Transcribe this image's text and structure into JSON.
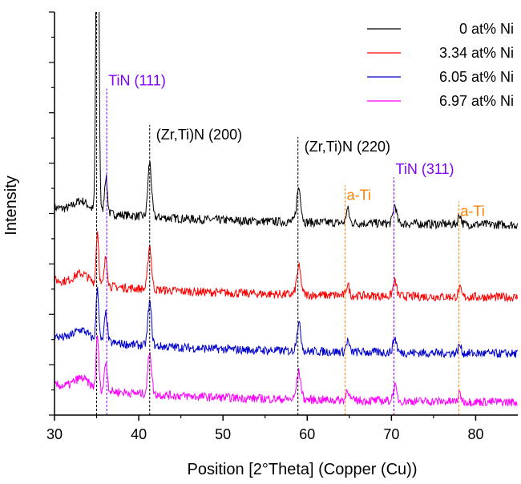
{
  "chart_data": {
    "type": "line",
    "title": "",
    "xlabel": "Position [2°Theta] (Copper (Cu))",
    "ylabel": "Intensity",
    "xlim": [
      30,
      85
    ],
    "ylim": [
      0,
      10
    ],
    "x_ticks": [
      "30",
      "40",
      "50",
      "60",
      "70",
      "80"
    ],
    "y_tick_labels_shown": false,
    "grid": false,
    "legend_position": "top-right",
    "series": [
      {
        "name": "0 at% Ni",
        "color": "#000000",
        "offset": 4.8
      },
      {
        "name": "3.34 at% Ni",
        "color": "#ff0000",
        "offset": 3.0
      },
      {
        "name": "6.05 at% Ni",
        "color": "#0000cc",
        "offset": 1.6
      },
      {
        "name": "6.97 at% Ni",
        "color": "#ff00ff",
        "offset": 0.4
      }
    ],
    "peaks": [
      {
        "x": 35.1,
        "height": 11.0,
        "width": 0.22
      },
      {
        "x": 36.1,
        "height": 0.9,
        "width": 0.25
      },
      {
        "x": 41.3,
        "height": 1.35,
        "width": 0.3
      },
      {
        "x": 59.0,
        "height": 0.85,
        "width": 0.35
      },
      {
        "x": 64.8,
        "height": 0.35,
        "width": 0.25
      },
      {
        "x": 70.4,
        "height": 0.45,
        "width": 0.3
      },
      {
        "x": 78.1,
        "height": 0.25,
        "width": 0.25
      }
    ],
    "annotations": [
      {
        "label": "TiN (111)",
        "x": 36.2,
        "color": "#8000ff",
        "line_top": 8.1
      },
      {
        "label": "(Zr,Ti)N (200)",
        "x": 41.3,
        "color": "#000000",
        "line_top": 7.2
      },
      {
        "label": "(Zr,Ti)N (220)",
        "x": 58.9,
        "color": "#000000",
        "line_top": 6.9
      },
      {
        "label": "a-Ti",
        "x": 64.5,
        "color": "#ff8000",
        "line_top": 5.7
      },
      {
        "label": "TiN (311)",
        "x": 70.3,
        "color": "#8000ff",
        "line_top": 5.9
      },
      {
        "label": "a-Ti",
        "x": 78.0,
        "color": "#ff8000",
        "line_top": 5.3
      }
    ],
    "reference_line_x": 35.0
  }
}
